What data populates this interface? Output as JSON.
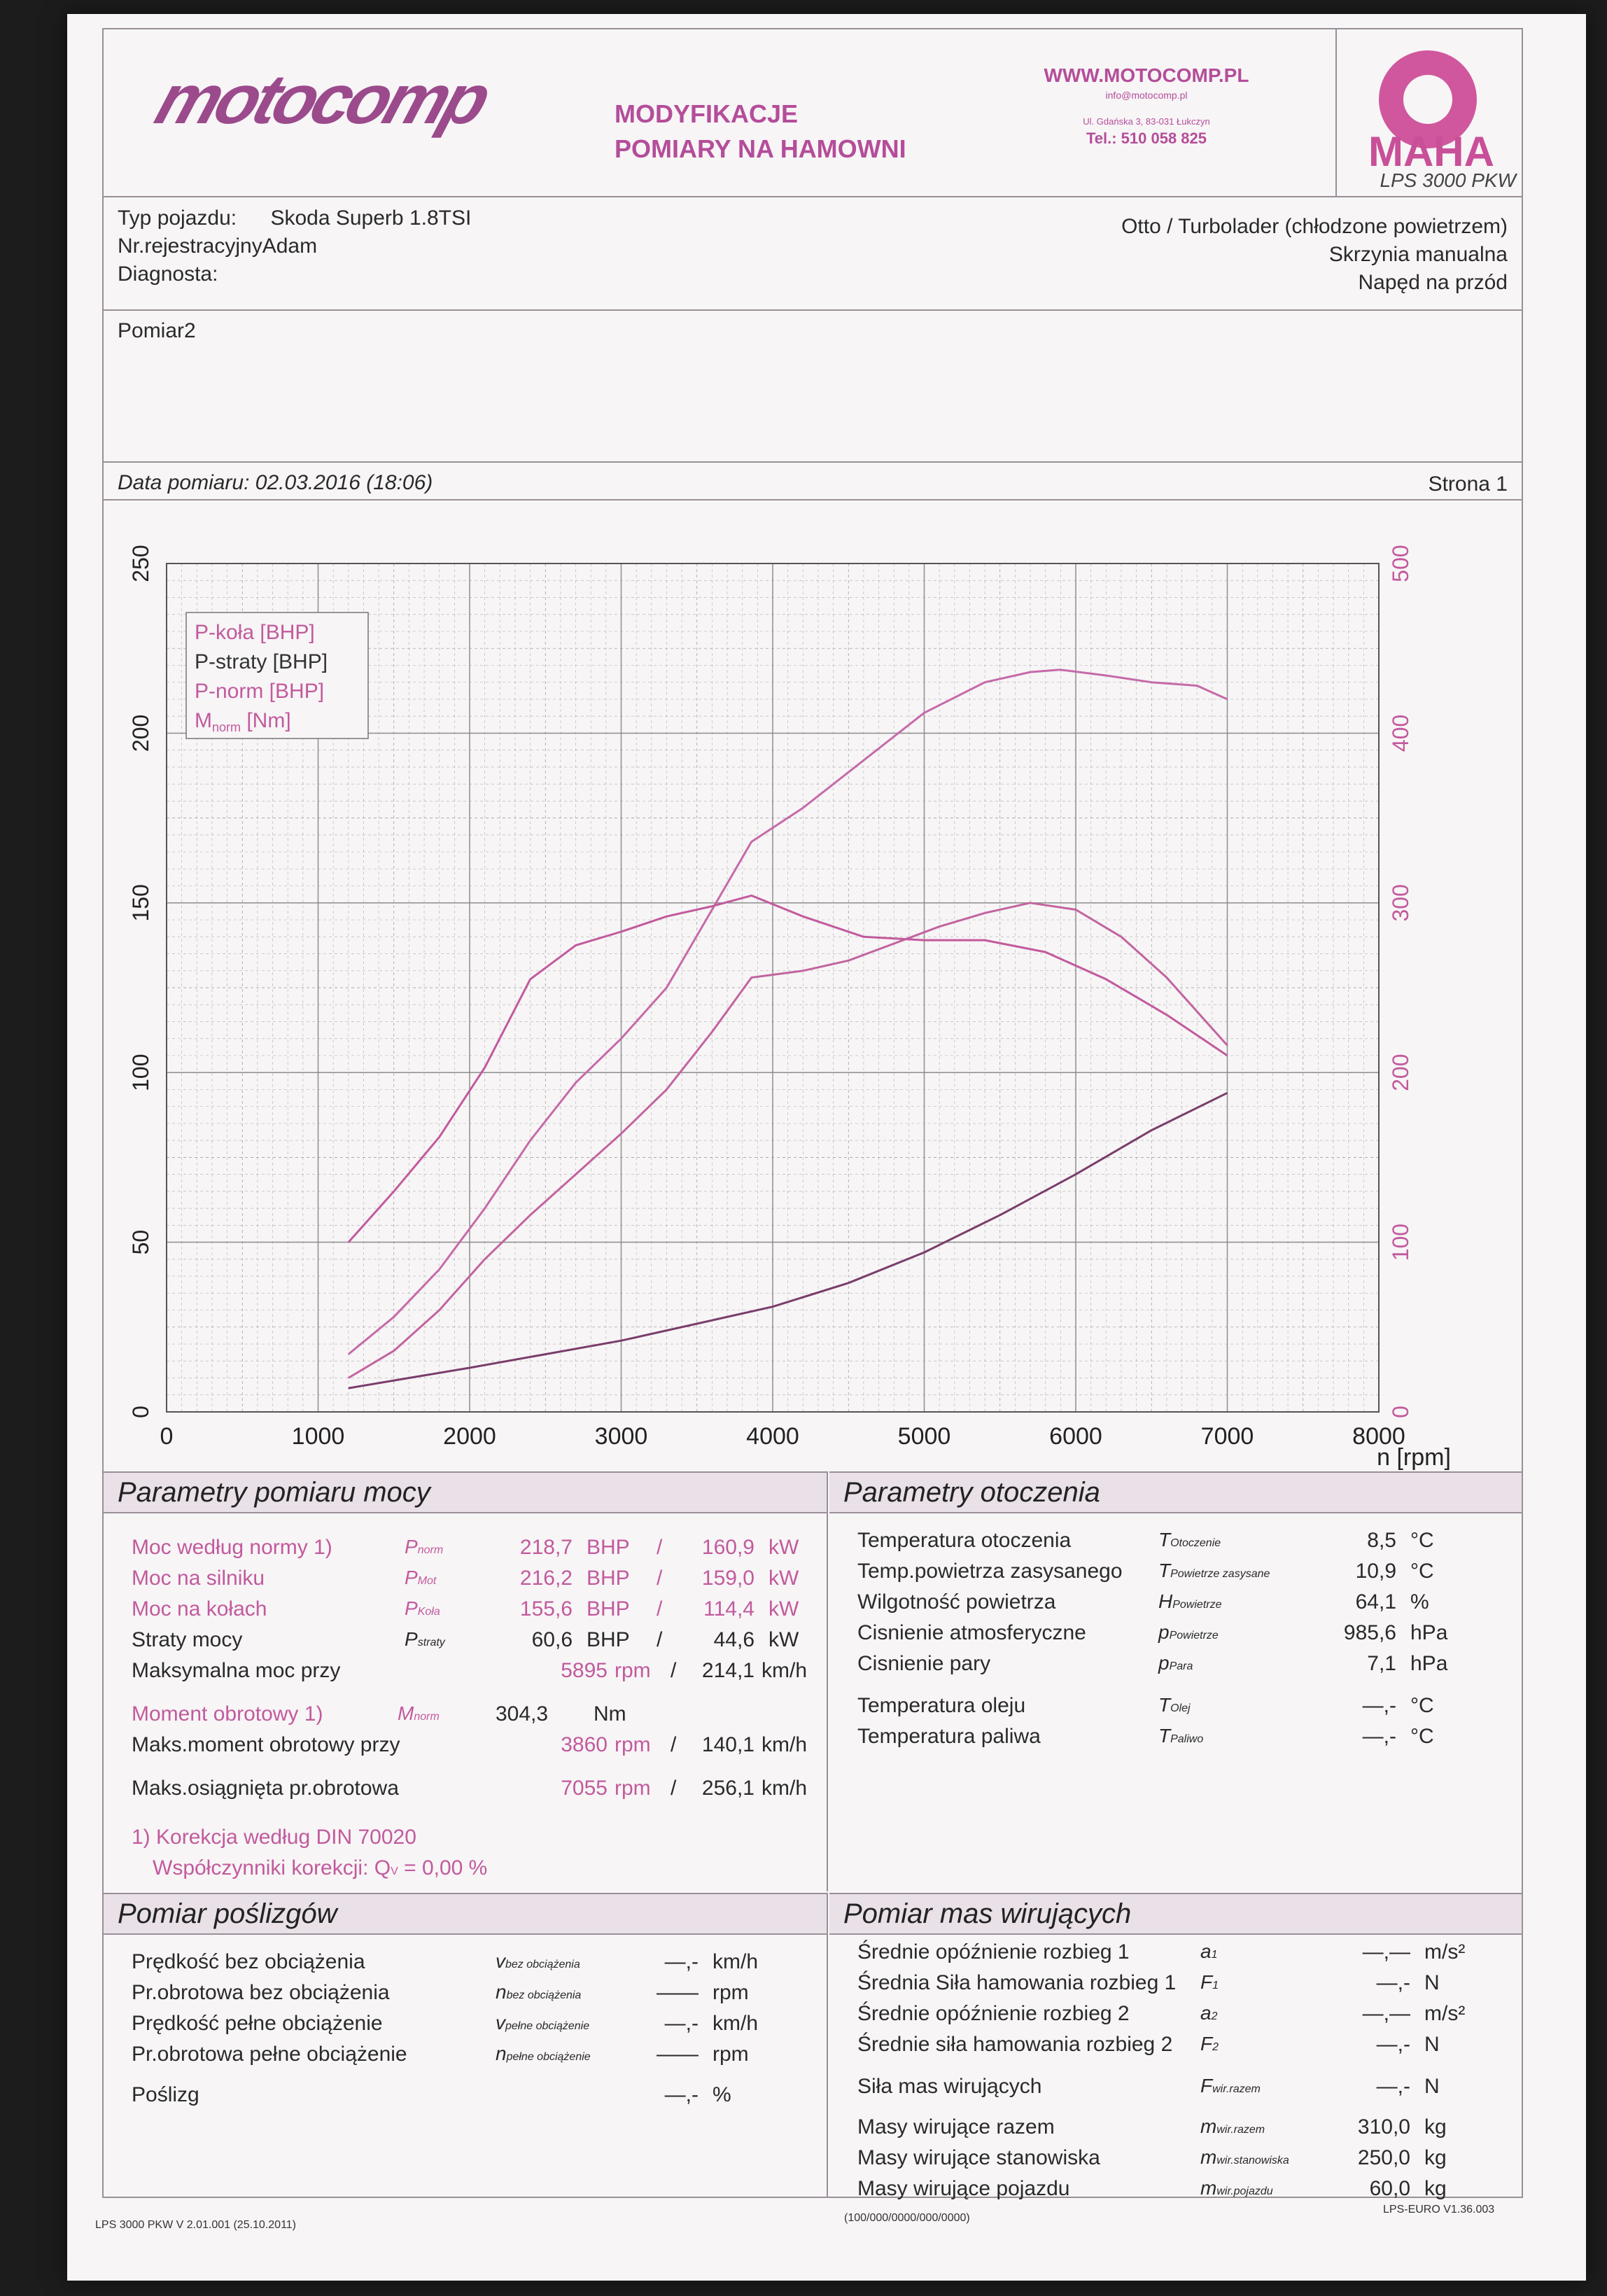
{
  "header": {
    "logo": "motocomp",
    "line1": "MODYFIKACJE",
    "line2": "POMIARY NA HAMOWNI",
    "url": "WWW.MOTOCOMP.PL",
    "email": "info@motocomp.pl",
    "address": "Ul. Gdańska 3, 83-031 Łukczyn",
    "phone": "Tel.: 510 058 825",
    "maha": "MAHA",
    "lps": "LPS 3000 PKW",
    "colors": {
      "brand": "#9b4a8c",
      "pink": "#c25a9d",
      "grid": "#8a8a8a"
    }
  },
  "vehicle": {
    "type_label": "Typ pojazdu:",
    "type_value": "Skoda Superb 1.8TSI",
    "reg": "Nr.rejestracyjnyAdam",
    "diag": "Diagnosta:",
    "engine": "Otto / Turbolader (chłodzone powietrzem)",
    "gearbox": "Skrzynia manualna",
    "drive": "Napęd na przód"
  },
  "pomiar": "Pomiar2",
  "date": "Data pomiaru: 02.03.2016 (18:06)",
  "page": "Strona 1",
  "chart_data": {
    "type": "line",
    "xlabel": "n [rpm]",
    "xlim": [
      0,
      8000
    ],
    "ylim_left": [
      0,
      250
    ],
    "ylim_right": [
      0,
      500
    ],
    "x_ticks": [
      "0",
      "1000",
      "2000",
      "3000",
      "4000",
      "5000",
      "6000",
      "7000",
      "8000"
    ],
    "y_ticks_left": [
      "0",
      "50",
      "100",
      "150",
      "200",
      "250"
    ],
    "y_ticks_right": [
      "0",
      "100",
      "200",
      "300",
      "400",
      "500"
    ],
    "legend": [
      "P-koła [BHP]",
      "P-straty [BHP]",
      "P-norm [BHP]",
      "M",
      "norm",
      " [Nm]"
    ],
    "series": [
      {
        "name": "P-koła [BHP]",
        "axis": "left",
        "x": [
          1200,
          1500,
          1800,
          2100,
          2400,
          2700,
          3000,
          3300,
          3600,
          3860,
          4200,
          4500,
          4800,
          5100,
          5400,
          5700,
          6000,
          6300,
          6600,
          6900,
          7000
        ],
        "y": [
          10,
          18,
          30,
          45,
          58,
          70,
          82,
          95,
          112,
          128,
          130,
          133,
          138,
          143,
          147,
          150,
          148,
          140,
          128,
          113,
          108
        ]
      },
      {
        "name": "P-straty [BHP]",
        "axis": "left",
        "x": [
          1200,
          1600,
          2000,
          2500,
          3000,
          3500,
          4000,
          4500,
          5000,
          5500,
          6000,
          6500,
          7000
        ],
        "y": [
          7,
          10,
          13,
          17,
          21,
          26,
          31,
          38,
          47,
          58,
          70,
          83,
          94
        ]
      },
      {
        "name": "P-norm [BHP]",
        "axis": "left",
        "x": [
          1200,
          1500,
          1800,
          2100,
          2400,
          2700,
          3000,
          3300,
          3600,
          3860,
          4200,
          4600,
          5000,
          5400,
          5700,
          5895,
          6200,
          6500,
          6800,
          7000
        ],
        "y": [
          17,
          28,
          42,
          60,
          80,
          97,
          110,
          125,
          148,
          168,
          178,
          192,
          206,
          215,
          218,
          218.7,
          217,
          215,
          214,
          210
        ]
      },
      {
        "name": "M norm [Nm]",
        "axis": "right",
        "x": [
          1200,
          1500,
          1800,
          2100,
          2400,
          2700,
          3000,
          3300,
          3600,
          3860,
          4200,
          4600,
          5000,
          5400,
          5800,
          6200,
          6600,
          6900,
          7000
        ],
        "y": [
          100,
          130,
          162,
          203,
          255,
          275,
          283,
          292,
          298,
          304.3,
          292,
          280,
          278,
          278,
          271,
          255,
          234,
          216,
          210
        ]
      }
    ]
  },
  "power": {
    "title": "Parametry pomiaru mocy",
    "rows": [
      {
        "label": "Moc według normy",
        "note": "1)",
        "sym": "P",
        "symsub": "norm",
        "v1": "218,7",
        "u1": "BHP",
        "v2": "160,9",
        "u2": "kW"
      },
      {
        "label": "Moc na silniku",
        "sym": "P",
        "symsub": "Mot",
        "v1": "216,2",
        "u1": "BHP",
        "v2": "159,0",
        "u2": "kW"
      },
      {
        "label": "Moc na kołach",
        "sym": "P",
        "symsub": "Koła",
        "v1": "155,6",
        "u1": "BHP",
        "v2": "114,4",
        "u2": "kW"
      },
      {
        "label": "Straty mocy",
        "sym": "P",
        "symsub": "straty",
        "v1": "60,6",
        "u1": "BHP",
        "v2": "44,6",
        "u2": "kW"
      }
    ],
    "maxp_label": "Maksymalna moc przy",
    "maxp_rpm": "5895",
    "maxp_speed": "214,1",
    "torque_label": "Moment obrotowy",
    "torque_note": "1)",
    "torque_sym": "M",
    "torque_sub": "norm",
    "torque_val": "304,3",
    "torque_unit": "Nm",
    "maxm_label": "Maks.moment obrotowy przy",
    "maxm_rpm": "3860",
    "maxm_speed": "140,1",
    "maxn_label": "Maks.osiągnięta pr.obrotowa",
    "maxn_rpm": "7055",
    "maxn_speed": "256,1",
    "rpm": "rpm",
    "kmh": "km/h",
    "slash": "/",
    "din": "1) Korekcja według DIN 70020",
    "coef": "Współczynniki korekcji: Q",
    "coef_sub": "V",
    "coef_val": "=    0,00 %"
  },
  "env": {
    "title": "Parametry otoczenia",
    "rows": [
      {
        "label": "Temperatura otoczenia",
        "sym": "T",
        "sub": "Otoczenie",
        "val": "8,5",
        "unit": "°C"
      },
      {
        "label": "Temp.powietrza zasysanego",
        "sym": "T",
        "sub": "Powietrze zasysane",
        "val": "10,9",
        "unit": "°C"
      },
      {
        "label": "Wilgotność powietrza",
        "sym": "H",
        "sub": "Powietrze",
        "val": "64,1",
        "unit": "%"
      },
      {
        "label": "Cisnienie atmosferyczne",
        "sym": "p",
        "sub": "Powietrze",
        "val": "985,6",
        "unit": "hPa"
      },
      {
        "label": "Cisnienie pary",
        "sym": "p",
        "sub": "Para",
        "val": "7,1",
        "unit": "hPa"
      },
      {
        "label": "Temperatura oleju",
        "sym": "T",
        "sub": "Olej",
        "val": "—,-",
        "unit": "°C"
      },
      {
        "label": "Temperatura paliwa",
        "sym": "T",
        "sub": "Paliwo",
        "val": "—,-",
        "unit": "°C"
      }
    ]
  },
  "slip": {
    "title": "Pomiar poślizgów",
    "rows": [
      {
        "label": "Prędkość bez obciążenia",
        "sym": "v",
        "sub": "bez obciążenia",
        "val": "—,-",
        "unit": "km/h"
      },
      {
        "label": "Pr.obrotowa bez obciążenia",
        "sym": "n",
        "sub": "bez obciążenia",
        "val": "——",
        "unit": "rpm"
      },
      {
        "label": "Prędkość pełne obciążenie",
        "sym": "v",
        "sub": "pełne obciążenie",
        "val": "—,-",
        "unit": "km/h"
      },
      {
        "label": "Pr.obrotowa pełne obciążenie",
        "sym": "n",
        "sub": "pełne obciążenie",
        "val": "——",
        "unit": "rpm"
      },
      {
        "label": "Poślizg",
        "sym": "",
        "sub": "",
        "val": "—,-",
        "unit": "%"
      }
    ]
  },
  "mass": {
    "title": "Pomiar mas wirujących",
    "rows": [
      {
        "label": "Średnie opóźnienie rozbieg 1",
        "sym": "a",
        "sub": "1",
        "val": "—,—",
        "unit": "m/s²"
      },
      {
        "label": "Średnia Siła hamowania rozbieg 1",
        "sym": "F",
        "sub": "1",
        "val": "—,-",
        "unit": "N"
      },
      {
        "label": "Średnie opóźnienie rozbieg 2",
        "sym": "a",
        "sub": "2",
        "val": "—,—",
        "unit": "m/s²"
      },
      {
        "label": "Średnie siła hamowania rozbieg 2",
        "sym": "F",
        "sub": "2",
        "val": "—,-",
        "unit": "N"
      },
      {
        "label": "Siła mas wirujących",
        "sym": "F",
        "sub": "wir.razem",
        "val": "—,-",
        "unit": "N"
      },
      {
        "label": "Masy wirujące razem",
        "sym": "m",
        "sub": "wir.razem",
        "val": "310,0",
        "unit": "kg"
      },
      {
        "label": "Masy wirujące stanowiska",
        "sym": "m",
        "sub": "wir.stanowiska",
        "val": "250,0",
        "unit": "kg"
      },
      {
        "label": "Masy wirujące pojazdu",
        "sym": "m",
        "sub": "wir.pojazdu",
        "val": "60,0",
        "unit": "kg"
      }
    ]
  },
  "footer": {
    "left": "LPS 3000 PKW V 2.01.001 (25.10.2011)",
    "center": "(100/000/0000/000/0000)",
    "right": "LPS-EURO V1.36.003"
  }
}
